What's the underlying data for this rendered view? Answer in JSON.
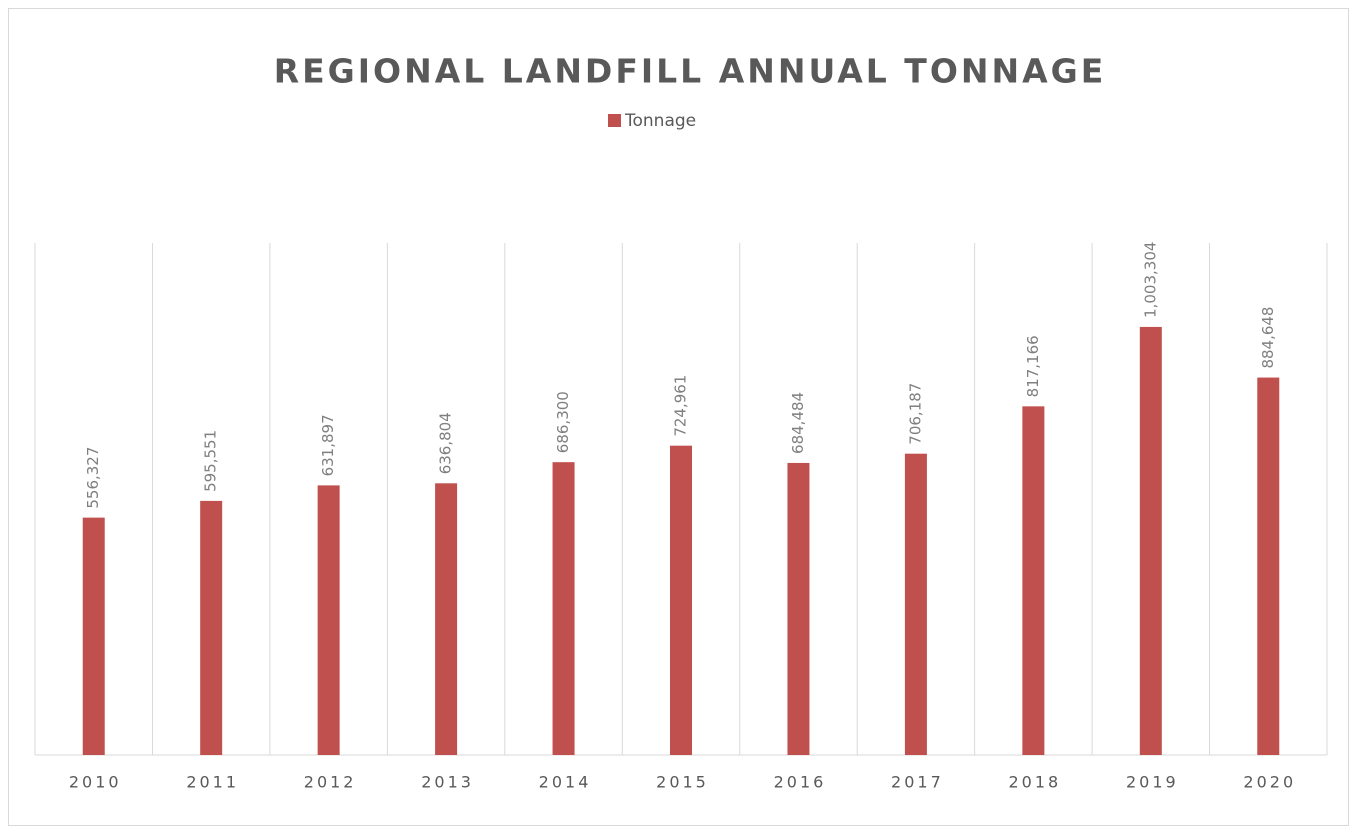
{
  "chart_data": {
    "type": "bar",
    "title": "REGIONAL LANDFILL ANNUAL TONNAGE",
    "categories": [
      "2010",
      "2011",
      "2012",
      "2013",
      "2014",
      "2015",
      "2016",
      "2017",
      "2018",
      "2019",
      "2020"
    ],
    "series": [
      {
        "name": "Tonnage",
        "color": "#c0504d",
        "values": [
          556327,
          595551,
          631897,
          636804,
          686300,
          724961,
          684484,
          706187,
          817166,
          1003304,
          884648
        ],
        "value_labels": [
          "556,327",
          "595,551",
          "631,897",
          "636,804",
          "686,300",
          "724,961",
          "684,484",
          "706,187",
          "817,166",
          "1,003,304",
          "884,648"
        ]
      }
    ],
    "ylim": [
      0,
      1200000
    ],
    "legend": "top",
    "category_grid": true
  }
}
